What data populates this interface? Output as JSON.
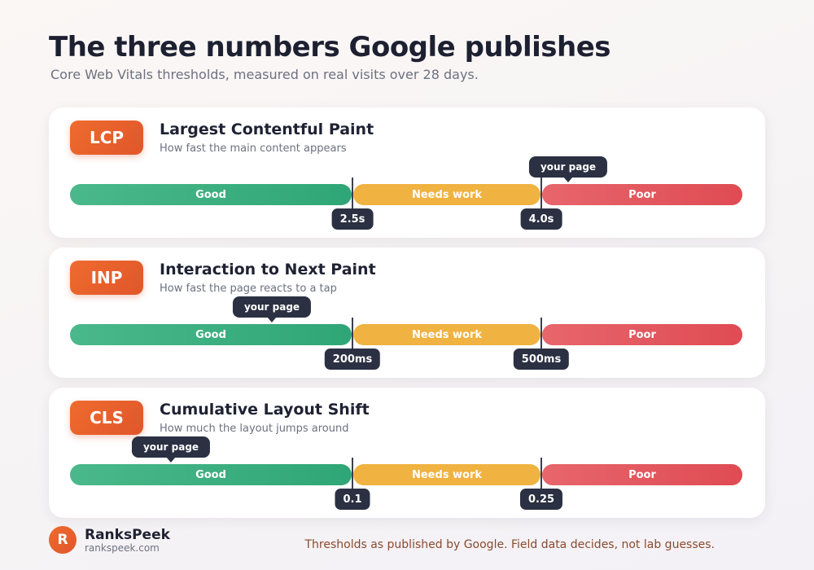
{
  "header": {
    "title": "The three numbers Google publishes",
    "subtitle": "Core Web Vitals thresholds, measured on real visits over 28 days."
  },
  "metrics": [
    {
      "abbr": "LCP",
      "name": "Largest Contentful Paint",
      "description": "How fast the main content appears",
      "segments": {
        "good": "Good",
        "needs_work": "Needs work",
        "poor": "Poor"
      },
      "thresholds": [
        "2.5s",
        "4.0s"
      ],
      "marker_label": "your page",
      "marker_zone": "poor"
    },
    {
      "abbr": "INP",
      "name": "Interaction to Next Paint",
      "description": "How fast the page reacts to a tap",
      "segments": {
        "good": "Good",
        "needs_work": "Needs work",
        "poor": "Poor"
      },
      "thresholds": [
        "200ms",
        "500ms"
      ],
      "marker_label": "your page",
      "marker_zone": "good"
    },
    {
      "abbr": "CLS",
      "name": "Cumulative Layout Shift",
      "description": "How much the layout jumps around",
      "segments": {
        "good": "Good",
        "needs_work": "Needs work",
        "poor": "Poor"
      },
      "thresholds": [
        "0.1",
        "0.25"
      ],
      "marker_label": "your page",
      "marker_zone": "good"
    }
  ],
  "footer": {
    "logo_letter": "R",
    "brand_name": "RanksPeek",
    "brand_url": "rankspeek.com",
    "note": "Thresholds as published by Google. Field data decides, not lab guesses."
  },
  "colors": {
    "accent": "#E8602C",
    "good": "#2FA676",
    "needs_work": "#F0B240",
    "poor": "#DF4B53",
    "label_bg": "#2B3042"
  }
}
